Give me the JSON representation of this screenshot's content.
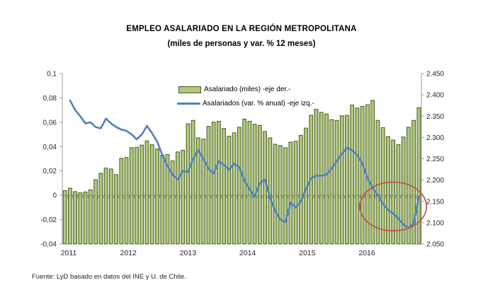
{
  "header": {
    "title": "EMPLEO ASALARIADO EN LA REGIÓN METROPOLITANA",
    "subtitle": "(miles de personas y var. % 12 meses)"
  },
  "legend": [
    {
      "label": "Asalariado (miles) -eje der.-",
      "swatch": "bar-swatch",
      "color": "#aec87f"
    },
    {
      "label": "Asalariados (var. % anual) -eje izq.-",
      "swatch": "line-swatch",
      "color": "#4f81bd"
    }
  ],
  "source_note": "Fuente: LyD basado en datos del INE y U. de Chile.",
  "colors": {
    "bar_fill": "#aec87f",
    "bar_border": "#4b5a1e",
    "line": "#4f81bd",
    "annotation": "#c0504d",
    "axis": "#9e9e9e",
    "zero_line": "#666666",
    "tick_text": "#262626"
  },
  "chart_data": {
    "type": "bar+line combo",
    "period": {
      "start": "2011-01",
      "end": "2016-10",
      "frequency": "monthly",
      "n_points": 70
    },
    "x_year_labels": [
      "2011",
      "2012",
      "2013",
      "2014",
      "2015",
      "2016"
    ],
    "left_axis": {
      "side": "left",
      "applies_to": "Asalariados (var. % anual)",
      "min": -0.04,
      "max": 0.1,
      "step": 0.02,
      "tick_labels": [
        "0,1",
        "0,08",
        "0,06",
        "0,04",
        "0,02",
        "0",
        "-0,02",
        "-0,04"
      ]
    },
    "right_axis": {
      "side": "right",
      "applies_to": "Asalariado (miles)",
      "min": 2050,
      "max": 2450,
      "step": 50,
      "tick_labels": [
        "2.450",
        "2.400",
        "2.350",
        "2.300",
        "2.250",
        "2.200",
        "2.150",
        "2.100",
        "2.050"
      ]
    },
    "grid": "none (dotted category axis at left-axis 0)",
    "legend_position": "top-center inside plot",
    "series": [
      {
        "name": "Asalariado (miles)",
        "type": "bar",
        "axis": "right",
        "values": [
          2175,
          2181,
          2173,
          2170,
          2172,
          2177,
          2201,
          2216,
          2228,
          2226,
          2213,
          2251,
          2253,
          2276,
          2277,
          2282,
          2292,
          2283,
          2273,
          2258,
          2260,
          2245,
          2266,
          2270,
          2332,
          2340,
          2299,
          2296,
          2326,
          2336,
          2338,
          2321,
          2303,
          2311,
          2324,
          2343,
          2338,
          2331,
          2328,
          2314,
          2299,
          2284,
          2281,
          2276,
          2289,
          2291,
          2305,
          2322,
          2352,
          2366,
          2359,
          2355,
          2342,
          2340,
          2351,
          2352,
          2376,
          2369,
          2373,
          2377,
          2387,
          2340,
          2323,
          2302,
          2294,
          2283,
          2301,
          2324,
          2340,
          2370
        ]
      },
      {
        "name": "Asalariados (var. % anual)",
        "type": "line",
        "axis": "left",
        "values": [
          null,
          0.078,
          0.07,
          0.065,
          0.059,
          0.06,
          0.056,
          0.055,
          0.063,
          0.059,
          0.056,
          0.054,
          0.053,
          0.05,
          0.046,
          0.05,
          0.057,
          0.051,
          0.044,
          0.033,
          0.024,
          0.017,
          0.013,
          0.02,
          0.019,
          0.03,
          0.037,
          0.03,
          0.022,
          0.018,
          0.028,
          0.025,
          0.021,
          0.026,
          0.023,
          0.012,
          0.005,
          -0.001,
          0.01,
          0.013,
          -0.002,
          -0.013,
          -0.02,
          -0.022,
          -0.006,
          -0.01,
          -0.005,
          0.005,
          0.014,
          0.016,
          0.016,
          0.017,
          0.022,
          0.028,
          0.034,
          0.039,
          0.037,
          0.033,
          0.026,
          0.014,
          0.006,
          0.0,
          -0.007,
          -0.012,
          -0.015,
          -0.019,
          -0.024,
          -0.027,
          -0.023,
          -0.001
        ]
      }
    ],
    "annotation": {
      "type": "ellipse",
      "color": "#c0504d",
      "note": "red ellipse highlighting the 2016 negative-variation dip and final uptick",
      "cx_month_index": 64.0,
      "cy_left_value": -0.0092,
      "rx_months": 6.5,
      "ry_left_value": 0.02
    }
  }
}
